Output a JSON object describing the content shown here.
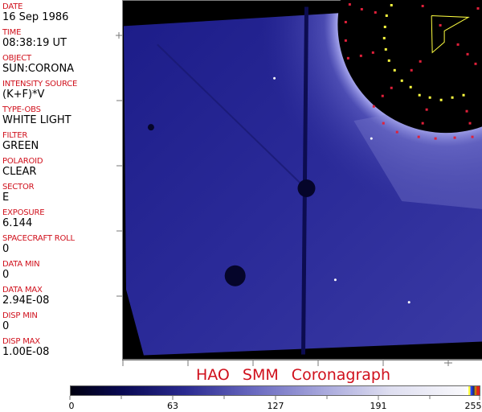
{
  "metadata": [
    {
      "label": "DATE",
      "value": "16 Sep 1986"
    },
    {
      "label": "TIME",
      "value": "08:38:19 UT"
    },
    {
      "label": "OBJECT",
      "value": "SUN:CORONA"
    },
    {
      "label": "INTENSITY SOURCE",
      "value": "(K+F)*V"
    },
    {
      "label": "TYPE-OBS",
      "value": "WHITE LIGHT"
    },
    {
      "label": "FILTER",
      "value": "GREEN"
    },
    {
      "label": "POLAROID",
      "value": "CLEAR"
    },
    {
      "label": "SECTOR",
      "value": "E"
    },
    {
      "label": "EXPOSURE",
      "value": "6.144"
    },
    {
      "label": "SPACECRAFT ROLL",
      "value": "0"
    },
    {
      "label": "DATA MIN",
      "value": "0"
    },
    {
      "label": "DATA MAX",
      "value": "2.94E-08"
    },
    {
      "label": "DISP MIN",
      "value": "0"
    },
    {
      "label": "DISP MAX",
      "value": "1.00E-08"
    }
  ],
  "title": "HAO  SMM  Coronagraph",
  "colorbar": {
    "ticks": [
      "0",
      "63",
      "127",
      "191",
      "255"
    ],
    "min": 0,
    "max": 255,
    "colormap": "black-blue-white"
  },
  "colors": {
    "label": "#d0101c",
    "image_blue": "#3a3aa8",
    "grid_red": "#e0203a",
    "grid_yellow": "#ffff40"
  }
}
